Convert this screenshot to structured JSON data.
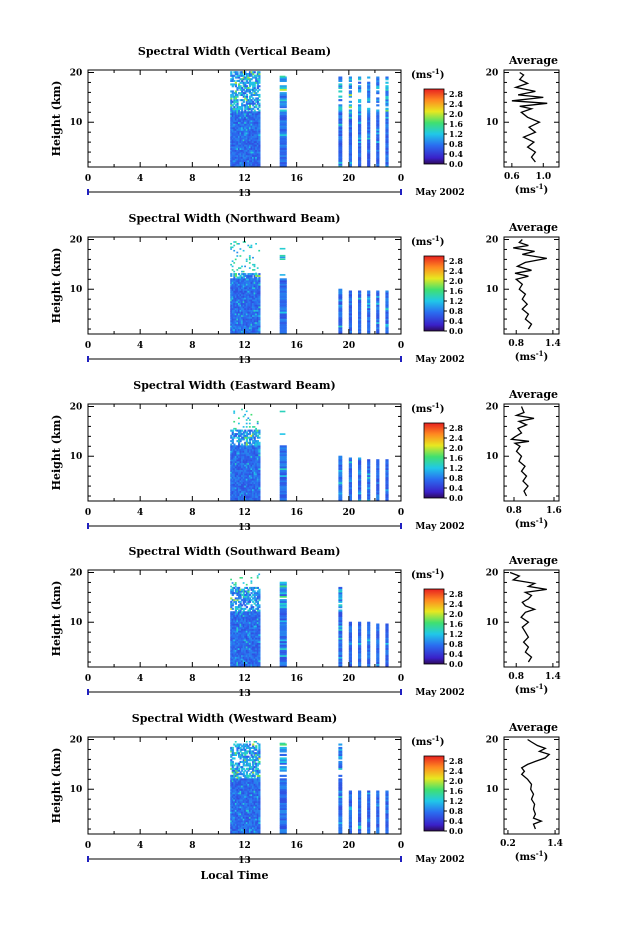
{
  "chart_data": {
    "type": "heatmap",
    "xlabel": "Local Time",
    "date_label": "May 2002",
    "day_label": "13",
    "x_ticks": [
      "0",
      "4",
      "8",
      "12",
      "16",
      "20",
      "0"
    ],
    "y_ticks": [
      "20",
      "10"
    ],
    "ylabel": "Height (km)",
    "colorbar": {
      "unit": "ms",
      "unit_exp": "-1",
      "ticks": [
        "2.8",
        "2.4",
        "2.0",
        "1.6",
        "1.2",
        "0.8",
        "0.4",
        "0.0"
      ],
      "range": [
        0,
        3.0
      ]
    },
    "average_title": "Average",
    "panels": [
      {
        "title": "Spectral Width (Vertical Beam)",
        "avg_ticks": [
          "0.6",
          "1.0"
        ],
        "avg_range": [
          0.5,
          1.2
        ],
        "avg_profile": [
          [
            0.9,
            2
          ],
          [
            0.85,
            3
          ],
          [
            0.9,
            4
          ],
          [
            0.8,
            5
          ],
          [
            0.88,
            6
          ],
          [
            0.75,
            7
          ],
          [
            0.9,
            8
          ],
          [
            0.82,
            9
          ],
          [
            0.95,
            10
          ],
          [
            0.8,
            11
          ],
          [
            0.72,
            12
          ],
          [
            0.85,
            12.7
          ],
          [
            0.7,
            13.2
          ],
          [
            1.05,
            13.8
          ],
          [
            0.6,
            14.3
          ],
          [
            1.0,
            15
          ],
          [
            0.68,
            15.5
          ],
          [
            0.9,
            16.2
          ],
          [
            0.65,
            17
          ],
          [
            0.8,
            17.8
          ],
          [
            0.7,
            18.6
          ],
          [
            0.75,
            19.5
          ],
          [
            0.7,
            20
          ]
        ]
      },
      {
        "title": "Spectral Width (Northward Beam)",
        "avg_ticks": [
          "0.8",
          "1.4"
        ],
        "avg_range": [
          0.6,
          1.5
        ],
        "avg_profile": [
          [
            1.0,
            2
          ],
          [
            1.05,
            3
          ],
          [
            0.95,
            4
          ],
          [
            1.0,
            5
          ],
          [
            0.9,
            6
          ],
          [
            0.98,
            7
          ],
          [
            0.9,
            8
          ],
          [
            0.95,
            9
          ],
          [
            0.85,
            10
          ],
          [
            0.9,
            11
          ],
          [
            0.8,
            12
          ],
          [
            1.0,
            12.6
          ],
          [
            0.78,
            13.2
          ],
          [
            1.05,
            13.8
          ],
          [
            0.82,
            14.6
          ],
          [
            0.95,
            15.4
          ],
          [
            1.3,
            16.2
          ],
          [
            0.9,
            17
          ],
          [
            1.1,
            17.6
          ],
          [
            0.75,
            18.3
          ],
          [
            1.0,
            18.8
          ],
          [
            0.85,
            19.4
          ],
          [
            0.9,
            20
          ]
        ]
      },
      {
        "title": "Spectral Width (Eastward Beam)",
        "avg_ticks": [
          "0.8",
          "1.6"
        ],
        "avg_range": [
          0.6,
          1.7
        ],
        "avg_profile": [
          [
            1.05,
            2
          ],
          [
            1.0,
            3
          ],
          [
            1.08,
            4
          ],
          [
            0.98,
            5
          ],
          [
            1.05,
            6
          ],
          [
            0.95,
            7
          ],
          [
            1.02,
            8
          ],
          [
            0.9,
            9
          ],
          [
            0.95,
            10
          ],
          [
            0.85,
            11
          ],
          [
            0.92,
            12
          ],
          [
            0.82,
            12.6
          ],
          [
            1.1,
            13
          ],
          [
            0.75,
            13.4
          ],
          [
            0.82,
            13.9
          ],
          [
            0.95,
            14.7
          ],
          [
            0.88,
            15.6
          ],
          [
            1.05,
            16.3
          ],
          [
            0.9,
            17
          ],
          [
            1.2,
            17.6
          ],
          [
            0.85,
            18.2
          ],
          [
            1.0,
            18.8
          ],
          [
            0.95,
            20
          ]
        ]
      },
      {
        "title": "Spectral Width (Southward Beam)",
        "avg_ticks": [
          "0.8",
          "1.4"
        ],
        "avg_range": [
          0.6,
          1.5
        ],
        "avg_profile": [
          [
            1.0,
            2
          ],
          [
            1.05,
            3
          ],
          [
            0.95,
            4
          ],
          [
            1.0,
            5
          ],
          [
            0.92,
            6
          ],
          [
            1.0,
            7
          ],
          [
            0.95,
            8
          ],
          [
            0.9,
            9
          ],
          [
            1.0,
            10
          ],
          [
            0.88,
            11
          ],
          [
            0.95,
            12
          ],
          [
            1.1,
            12.6
          ],
          [
            0.95,
            13.3
          ],
          [
            0.9,
            14
          ],
          [
            1.0,
            14.7
          ],
          [
            1.05,
            15.4
          ],
          [
            0.95,
            16
          ],
          [
            1.3,
            16.6
          ],
          [
            1.0,
            17.2
          ],
          [
            1.1,
            17.8
          ],
          [
            0.75,
            18.5
          ],
          [
            0.85,
            19.3
          ],
          [
            0.7,
            20
          ]
        ]
      },
      {
        "title": "Spectral Width (Westward Beam)",
        "avg_ticks": [
          "0.2",
          "1.4"
        ],
        "avg_range": [
          0.1,
          1.5
        ],
        "avg_profile": [
          [
            0.9,
            2
          ],
          [
            0.85,
            3
          ],
          [
            1.05,
            3.6
          ],
          [
            0.85,
            4.2
          ],
          [
            0.9,
            5
          ],
          [
            0.85,
            6
          ],
          [
            0.88,
            7
          ],
          [
            0.8,
            8
          ],
          [
            0.85,
            9
          ],
          [
            0.78,
            10
          ],
          [
            0.8,
            11
          ],
          [
            0.7,
            12
          ],
          [
            0.55,
            13
          ],
          [
            0.62,
            13.6
          ],
          [
            0.55,
            14.3
          ],
          [
            0.7,
            15
          ],
          [
            0.9,
            15.6
          ],
          [
            1.15,
            16.3
          ],
          [
            1.25,
            17
          ],
          [
            1.0,
            17.6
          ],
          [
            1.15,
            18.2
          ],
          [
            0.95,
            18.8
          ],
          [
            0.8,
            19.5
          ],
          [
            0.7,
            20
          ]
        ]
      }
    ]
  }
}
